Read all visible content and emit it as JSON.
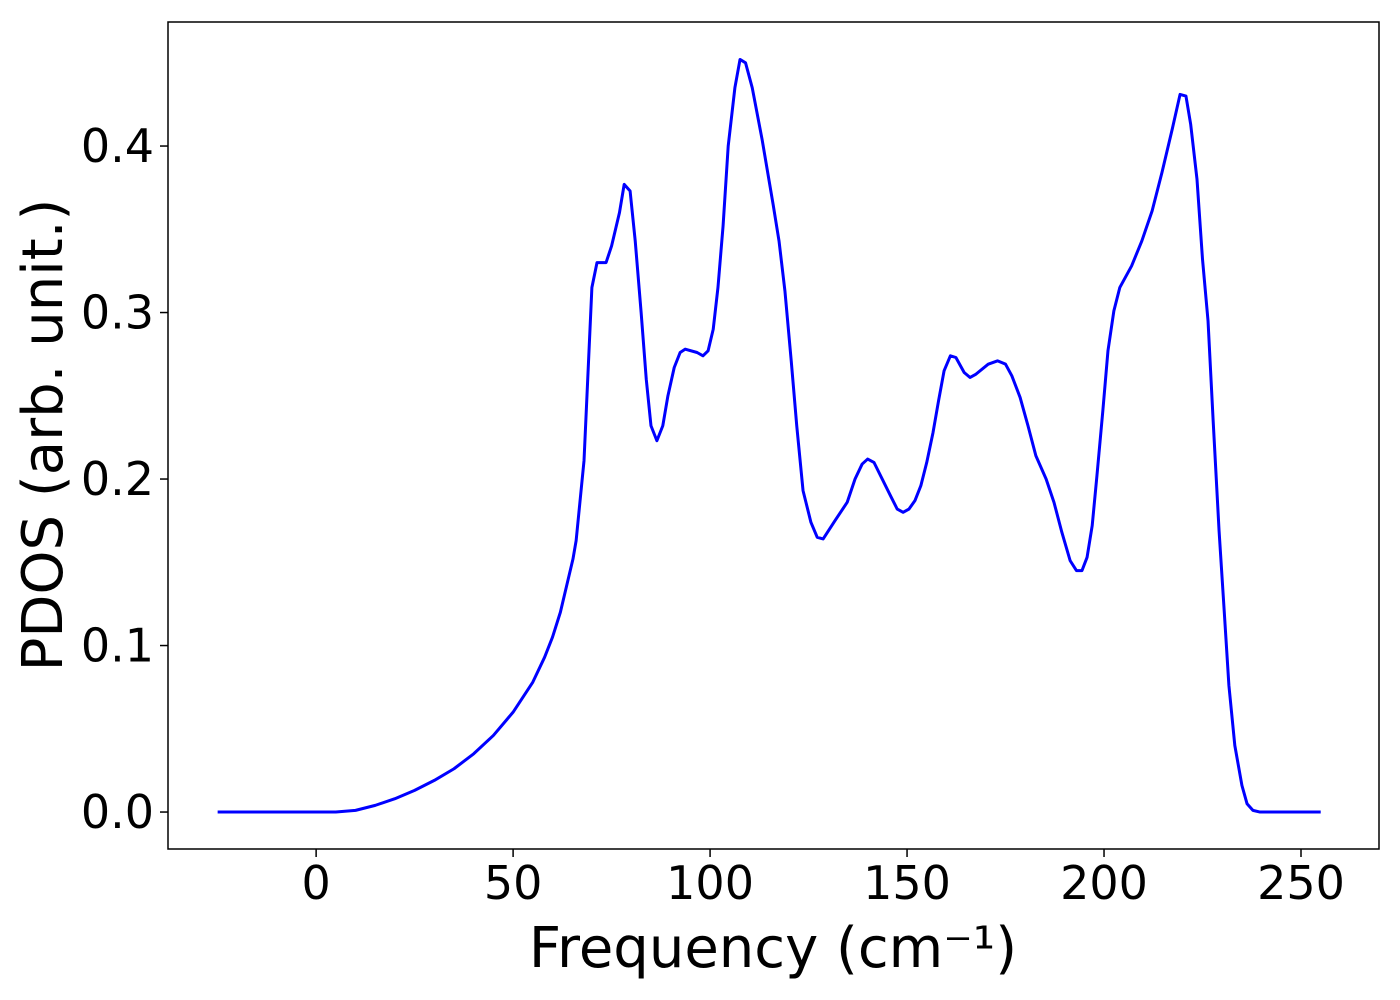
{
  "chart_data": {
    "type": "line",
    "xlabel": "Frequency (cm⁻¹)",
    "ylabel": "PDOS (arb. unit.)",
    "xlim": [
      -37.6,
      269.8
    ],
    "ylim": [
      -0.0222,
      0.4745
    ],
    "xticks": [
      0,
      50,
      100,
      150,
      200,
      250
    ],
    "yticks": [
      {
        "value": 0,
        "label": "0.0"
      },
      0.1,
      0.2,
      0.3,
      0.4
    ],
    "grid": false,
    "series": [
      {
        "color": "#0000ff",
        "x": [
          -25,
          -15,
          -5,
          5,
          10,
          15,
          20,
          25,
          30,
          35,
          40,
          45,
          50,
          55,
          58,
          60,
          62,
          64,
          65.2,
          66,
          68,
          70,
          71.3,
          73.6,
          75,
          77,
          78.2,
          79.7,
          81,
          82.5,
          83.8,
          85,
          86.5,
          88,
          89.3,
          90.9,
          92.4,
          93.7,
          96.7,
          98.2,
          99.5,
          100.8,
          102,
          103.3,
          104.6,
          106.3,
          107.6,
          109,
          110.7,
          113.2,
          116,
          117.5,
          119,
          120.6,
          122,
          123.6,
          125.6,
          127.2,
          128.7,
          131.7,
          134.8,
          136.8,
          138.6,
          140,
          141.6,
          143.7,
          146,
          147.5,
          149,
          150.5,
          152,
          153.5,
          155,
          156.6,
          158,
          159.4,
          161,
          162.4,
          164.5,
          166,
          167.5,
          170.6,
          173,
          175,
          176.6,
          178.7,
          180.7,
          182.7,
          185.3,
          187.3,
          189.3,
          191.4,
          193,
          194.4,
          195.7,
          197,
          198.2,
          199.7,
          201,
          202.5,
          204,
          207,
          209.6,
          212.2,
          214.7,
          217.3,
          219.3,
          220.8,
          222,
          223.6,
          225,
          226.4,
          227.7,
          229.2,
          230.5,
          231.7,
          233.2,
          235,
          236.3,
          237.8,
          239.6,
          245,
          255
        ],
        "values": [
          0,
          0,
          0,
          0,
          0.001,
          0.004,
          0.008,
          0.013,
          0.019,
          0.026,
          0.035,
          0.046,
          0.06,
          0.078,
          0.093,
          0.105,
          0.12,
          0.14,
          0.152,
          0.163,
          0.211,
          0.315,
          0.33,
          0.33,
          0.34,
          0.36,
          0.377,
          0.373,
          0.343,
          0.3,
          0.26,
          0.232,
          0.223,
          0.232,
          0.25,
          0.267,
          0.276,
          0.278,
          0.276,
          0.274,
          0.277,
          0.29,
          0.315,
          0.352,
          0.4,
          0.435,
          0.452,
          0.45,
          0.435,
          0.404,
          0.365,
          0.343,
          0.313,
          0.271,
          0.232,
          0.193,
          0.174,
          0.165,
          0.164,
          0.175,
          0.186,
          0.2,
          0.209,
          0.212,
          0.21,
          0.2,
          0.189,
          0.182,
          0.18,
          0.182,
          0.187,
          0.196,
          0.21,
          0.228,
          0.247,
          0.265,
          0.274,
          0.273,
          0.264,
          0.261,
          0.263,
          0.269,
          0.271,
          0.269,
          0.262,
          0.249,
          0.232,
          0.214,
          0.2,
          0.186,
          0.168,
          0.151,
          0.145,
          0.145,
          0.153,
          0.172,
          0.202,
          0.241,
          0.277,
          0.301,
          0.315,
          0.328,
          0.343,
          0.361,
          0.384,
          0.41,
          0.431,
          0.43,
          0.413,
          0.38,
          0.332,
          0.295,
          0.235,
          0.169,
          0.121,
          0.076,
          0.04,
          0.016,
          0.005,
          0.001,
          0,
          0,
          0
        ]
      }
    ]
  }
}
